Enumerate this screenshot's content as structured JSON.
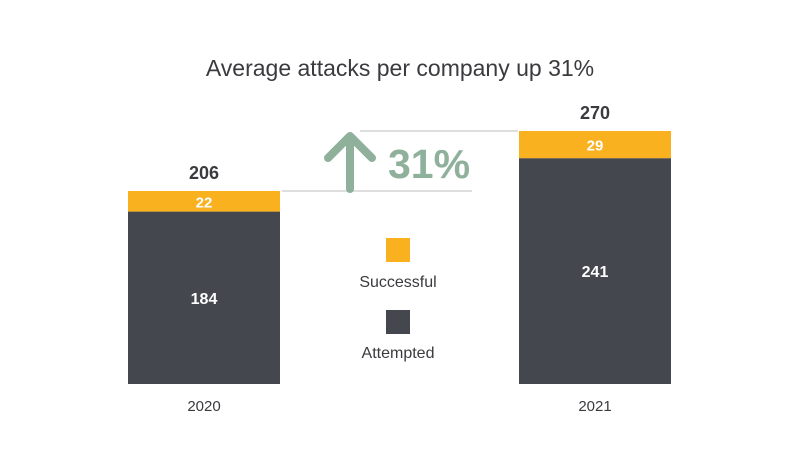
{
  "chart_data": {
    "type": "bar",
    "stacked": true,
    "title": "Average attacks per company up 31%",
    "categories": [
      "2020",
      "2021"
    ],
    "series": [
      {
        "name": "Attempted",
        "values": [
          184,
          241
        ],
        "color": "#45474e"
      },
      {
        "name": "Successful",
        "values": [
          22,
          29
        ],
        "color": "#f9b11f"
      }
    ],
    "totals": [
      206,
      270
    ],
    "ylim": [
      0,
      270
    ],
    "grid": false,
    "legend_placement": "center",
    "annotation": {
      "label": "31%",
      "icon": "arrow-up-icon",
      "color": "#8fb09b"
    }
  }
}
